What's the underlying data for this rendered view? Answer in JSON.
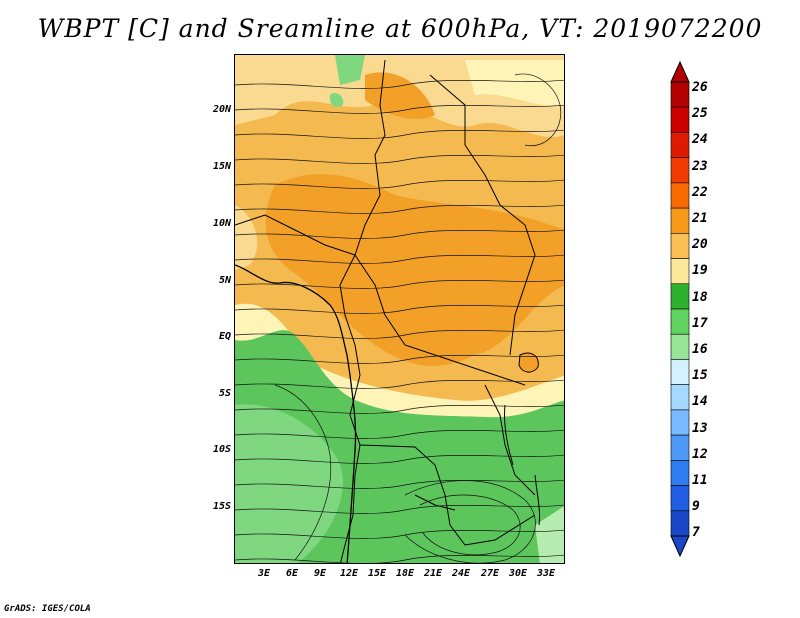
{
  "title": "WBPT [C] and Sreamline at 600hPa, VT: 2019072200",
  "footer": "GrADS: IGES/COLA",
  "lat_labels": [
    "20N",
    "15N",
    "10N",
    "5N",
    "EQ",
    "5S",
    "10S",
    "15S"
  ],
  "lon_labels": [
    "3E",
    "6E",
    "9E",
    "12E",
    "15E",
    "18E",
    "21E",
    "24E",
    "27E",
    "30E",
    "33E"
  ],
  "colorbar": {
    "labels": [
      "26",
      "25",
      "24",
      "23",
      "22",
      "21",
      "20",
      "19",
      "18",
      "17",
      "16",
      "15",
      "14",
      "13",
      "12",
      "11",
      "9",
      "7"
    ],
    "colors": [
      "#b30000",
      "#cc0000",
      "#e01a00",
      "#f03c00",
      "#f76b00",
      "#f79a1a",
      "#fac055",
      "#fde999",
      "#2eb22e",
      "#5fd25f",
      "#97e697",
      "#d2f2ff",
      "#a6d9ff",
      "#79b9ff",
      "#4d99f5",
      "#2e7cf2",
      "#1f5ee0",
      "#1a46c8"
    ]
  },
  "field_colors": {
    "c22": "#f2a028",
    "c20": "#f4ba50",
    "c19": "#fad990",
    "c18": "#fff4b8",
    "c17": "#5cc55c",
    "c16": "#7fd77f",
    "c15": "#b6ecb0"
  }
}
